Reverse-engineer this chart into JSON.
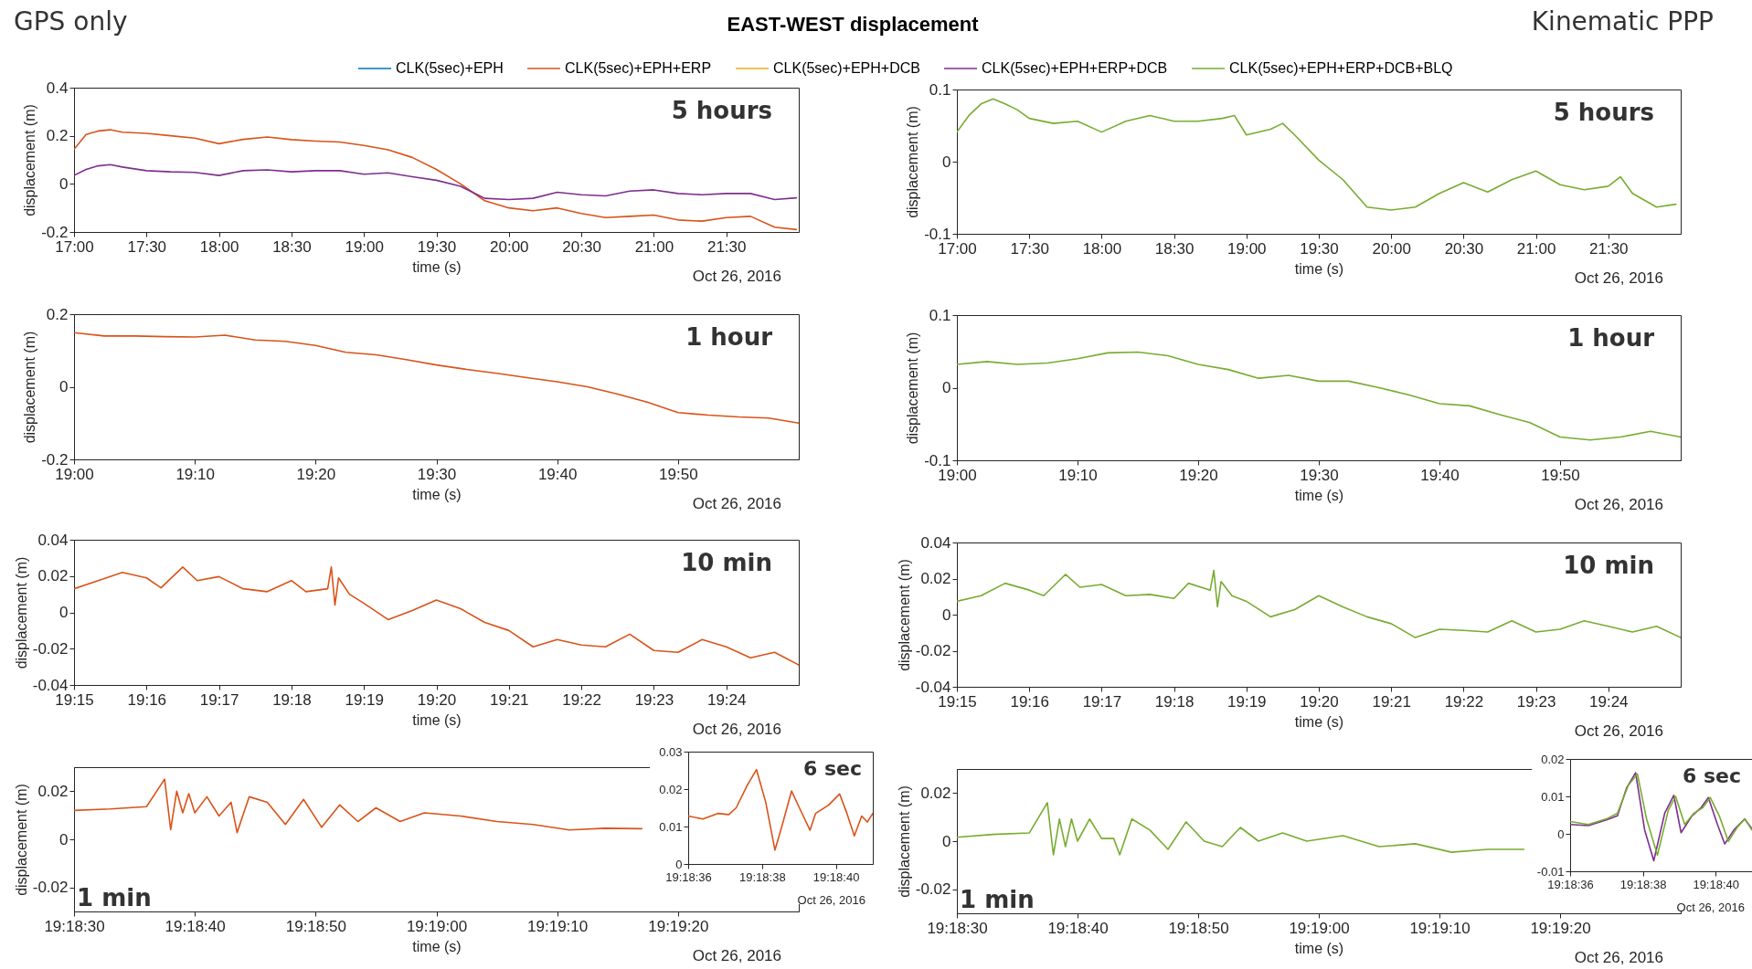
{
  "chart_data": [
    {
      "type": "line",
      "title": "EAST-WEST displacement",
      "subtitle": "GPS only",
      "xlabel": "time (s)",
      "ylabel": "displacement (m)",
      "annotations": [
        "5 hours",
        "Oct 26, 2016"
      ],
      "legend": "top",
      "xlim": [
        "2016-10-26T17:00",
        "2016-10-26T22:00"
      ],
      "ylim": [
        -0.2,
        0.4
      ],
      "yticks": [
        -0.2,
        0,
        0.2,
        0.4
      ],
      "xticks": [
        {
          "value": "2016-10-26T17:00",
          "label": "17:00"
        },
        {
          "value": "2016-10-26T17:30",
          "label": "17:30"
        },
        {
          "value": "2016-10-26T18:00",
          "label": "18:00"
        },
        {
          "value": "2016-10-26T18:30",
          "label": "18:30"
        },
        {
          "value": "2016-10-26T19:00",
          "label": "19:00"
        },
        {
          "value": "2016-10-26T19:30",
          "label": "19:30"
        },
        {
          "value": "2016-10-26T20:00",
          "label": "20:00"
        },
        {
          "value": "2016-10-26T20:30",
          "label": "20:30"
        },
        {
          "value": "2016-10-26T21:00",
          "label": "21:00"
        },
        {
          "value": "2016-10-26T21:30",
          "label": "21:30"
        }
      ],
      "x": [
        "2016-10-26T17:00",
        "2016-10-26T17:05",
        "2016-10-26T17:10",
        "2016-10-26T17:15",
        "2016-10-26T17:20",
        "2016-10-26T17:30",
        "2016-10-26T17:40",
        "2016-10-26T17:50",
        "2016-10-26T18:00",
        "2016-10-26T18:10",
        "2016-10-26T18:20",
        "2016-10-26T18:30",
        "2016-10-26T18:40",
        "2016-10-26T18:50",
        "2016-10-26T19:00",
        "2016-10-26T19:10",
        "2016-10-26T19:20",
        "2016-10-26T19:30",
        "2016-10-26T19:40",
        "2016-10-26T19:50",
        "2016-10-26T20:00",
        "2016-10-26T20:10",
        "2016-10-26T20:20",
        "2016-10-26T20:30",
        "2016-10-26T20:40",
        "2016-10-26T20:50",
        "2016-10-26T21:00",
        "2016-10-26T21:10",
        "2016-10-26T21:20",
        "2016-10-26T21:30",
        "2016-10-26T21:40",
        "2016-10-26T21:50",
        "2016-10-26T21:59"
      ],
      "series": [
        {
          "name": "CLK(5sec)+EPH",
          "color": "#0072bd",
          "values": [
            null,
            null,
            null,
            null,
            null,
            null,
            null,
            null,
            null,
            null,
            null,
            null,
            null,
            null,
            null,
            null,
            null,
            null,
            null,
            null,
            null,
            null,
            null,
            null,
            null,
            null,
            null,
            null,
            null,
            null,
            null,
            null,
            null
          ]
        },
        {
          "name": "CLK(5sec)+EPH+ERP",
          "color": "#d95319",
          "values": [
            0.144,
            0.205,
            0.22,
            0.225,
            0.215,
            0.21,
            0.2,
            0.19,
            0.167,
            0.185,
            0.195,
            0.184,
            0.178,
            0.174,
            0.16,
            0.142,
            0.11,
            0.06,
            0.0,
            -0.07,
            -0.1,
            -0.112,
            -0.1,
            -0.123,
            -0.14,
            -0.135,
            -0.13,
            -0.15,
            -0.155,
            -0.14,
            -0.135,
            -0.18,
            -0.19
          ]
        },
        {
          "name": "CLK(5sec)+EPH+DCB",
          "color": "#edb120",
          "values": [
            null,
            null,
            null,
            null,
            null,
            null,
            null,
            null,
            null,
            null,
            null,
            null,
            null,
            null,
            null,
            null,
            null,
            null,
            null,
            null,
            null,
            null,
            null,
            null,
            null,
            null,
            null,
            null,
            null,
            null,
            null,
            null,
            null
          ]
        },
        {
          "name": "CLK(5sec)+EPH+ERP+DCB",
          "color": "#7e2f8e",
          "values": [
            0.035,
            0.06,
            0.075,
            0.08,
            0.07,
            0.055,
            0.05,
            0.048,
            0.035,
            0.055,
            0.058,
            0.05,
            0.055,
            0.055,
            0.04,
            0.046,
            0.03,
            0.015,
            -0.01,
            -0.06,
            -0.065,
            -0.06,
            -0.035,
            -0.045,
            -0.05,
            -0.03,
            -0.025,
            -0.04,
            -0.045,
            -0.04,
            -0.04,
            -0.065,
            -0.058
          ]
        },
        {
          "name": "CLK(5sec)+EPH+ERP+DCB+BLQ",
          "color": "#77ac30",
          "values": [
            null,
            null,
            null,
            null,
            null,
            null,
            null,
            null,
            null,
            null,
            null,
            null,
            null,
            null,
            null,
            null,
            null,
            null,
            null,
            null,
            null,
            null,
            null,
            null,
            null,
            null,
            null,
            null,
            null,
            null,
            null,
            null,
            null
          ]
        }
      ]
    },
    {
      "type": "line",
      "xlabel": "time (s)",
      "ylabel": "displacement (m)",
      "annotations": [
        "1 hour",
        "Oct 26, 2016"
      ],
      "xlim": [
        "2016-10-26T19:00",
        "2016-10-26T20:00"
      ],
      "ylim": [
        -0.2,
        0.2
      ],
      "yticks": [
        -0.2,
        0,
        0.2
      ],
      "xticks": [
        {
          "value": "2016-10-26T19:00",
          "label": "19:00"
        },
        {
          "value": "2016-10-26T19:10",
          "label": "19:10"
        },
        {
          "value": "2016-10-26T19:20",
          "label": "19:20"
        },
        {
          "value": "2016-10-26T19:30",
          "label": "19:30"
        },
        {
          "value": "2016-10-26T19:40",
          "label": "19:40"
        },
        {
          "value": "2016-10-26T19:50",
          "label": "19:50"
        }
      ],
      "x": [
        "2016-10-26T19:00:00",
        "2016-10-26T19:02:30",
        "2016-10-26T19:05:00",
        "2016-10-26T19:07:30",
        "2016-10-26T19:10:00",
        "2016-10-26T19:12:30",
        "2016-10-26T19:15:00",
        "2016-10-26T19:17:30",
        "2016-10-26T19:20:00",
        "2016-10-26T19:22:30",
        "2016-10-26T19:25:00",
        "2016-10-26T19:27:30",
        "2016-10-26T19:30:00",
        "2016-10-26T19:32:30",
        "2016-10-26T19:35:00",
        "2016-10-26T19:37:30",
        "2016-10-26T19:40:00",
        "2016-10-26T19:42:30",
        "2016-10-26T19:45:00",
        "2016-10-26T19:47:30",
        "2016-10-26T19:50:00",
        "2016-10-26T19:52:30",
        "2016-10-26T19:55:00",
        "2016-10-26T19:57:30",
        "2016-10-26T20:00:00"
      ],
      "series": [
        {
          "color": "#d95319",
          "values": [
            0.149,
            0.14,
            0.14,
            0.138,
            0.137,
            0.142,
            0.129,
            0.125,
            0.114,
            0.095,
            0.088,
            0.075,
            0.06,
            0.048,
            0.037,
            0.025,
            0.014,
            0.0,
            -0.02,
            -0.043,
            -0.071,
            -0.078,
            -0.083,
            -0.086,
            -0.1
          ]
        }
      ]
    },
    {
      "type": "line",
      "xlabel": "time (s)",
      "ylabel": "displacement (m)",
      "annotations": [
        "10 min",
        "Oct 26, 2016"
      ],
      "xlim": [
        "2016-10-26T19:15",
        "2016-10-26T19:25"
      ],
      "ylim": [
        -0.04,
        0.04
      ],
      "yticks": [
        -0.04,
        -0.02,
        0,
        0.02,
        0.04
      ],
      "xticks": [
        {
          "value": "2016-10-26T19:15",
          "label": "19:15"
        },
        {
          "value": "2016-10-26T19:16",
          "label": "19:16"
        },
        {
          "value": "2016-10-26T19:17",
          "label": "19:17"
        },
        {
          "value": "2016-10-26T19:18",
          "label": "19:18"
        },
        {
          "value": "2016-10-26T19:19",
          "label": "19:19"
        },
        {
          "value": "2016-10-26T19:20",
          "label": "19:20"
        },
        {
          "value": "2016-10-26T19:21",
          "label": "19:21"
        },
        {
          "value": "2016-10-26T19:22",
          "label": "19:22"
        },
        {
          "value": "2016-10-26T19:23",
          "label": "19:23"
        },
        {
          "value": "2016-10-26T19:24",
          "label": "19:24"
        }
      ],
      "x": [
        "2016-10-26T19:15:00",
        "2016-10-26T19:15:20",
        "2016-10-26T19:15:40",
        "2016-10-26T19:16:00",
        "2016-10-26T19:16:12",
        "2016-10-26T19:16:30",
        "2016-10-26T19:16:42",
        "2016-10-26T19:17:00",
        "2016-10-26T19:17:20",
        "2016-10-26T19:17:40",
        "2016-10-26T19:18:00",
        "2016-10-26T19:18:12",
        "2016-10-26T19:18:30",
        "2016-10-26T19:18:33",
        "2016-10-26T19:18:36",
        "2016-10-26T19:18:39",
        "2016-10-26T19:18:48",
        "2016-10-26T19:19:00",
        "2016-10-26T19:19:20",
        "2016-10-26T19:19:40",
        "2016-10-26T19:20:00",
        "2016-10-26T19:20:20",
        "2016-10-26T19:20:40",
        "2016-10-26T19:21:00",
        "2016-10-26T19:21:20",
        "2016-10-26T19:21:40",
        "2016-10-26T19:22:00",
        "2016-10-26T19:22:20",
        "2016-10-26T19:22:40",
        "2016-10-26T19:23:00",
        "2016-10-26T19:23:20",
        "2016-10-26T19:23:40",
        "2016-10-26T19:24:00",
        "2016-10-26T19:24:20",
        "2016-10-26T19:24:40",
        "2016-10-26T19:25:00"
      ],
      "series": [
        {
          "color": "#d95319",
          "values": [
            0.013,
            0.0175,
            0.022,
            0.019,
            0.0135,
            0.025,
            0.0175,
            0.0197,
            0.013,
            0.0114,
            0.0175,
            0.0114,
            0.013,
            0.025,
            0.004,
            0.019,
            0.01,
            0.005,
            -0.004,
            0.001,
            0.0068,
            0.002,
            -0.0055,
            -0.01,
            -0.019,
            -0.015,
            -0.018,
            -0.019,
            -0.012,
            -0.021,
            -0.022,
            -0.015,
            -0.019,
            -0.025,
            -0.022,
            -0.029
          ]
        }
      ]
    },
    {
      "type": "line",
      "xlabel": "time (s)",
      "ylabel": "displacement (m)",
      "annotations": [
        "1 min",
        "Oct 26, 2016"
      ],
      "xlim": [
        "2016-10-26T19:18:30",
        "2016-10-26T19:19:30"
      ],
      "ylim": [
        -0.03,
        0.03
      ],
      "yticks": [
        -0.02,
        0,
        0.02
      ],
      "xticks": [
        {
          "value": "2016-10-26T19:18:30",
          "label": "19:18:30"
        },
        {
          "value": "2016-10-26T19:18:40",
          "label": "19:18:40"
        },
        {
          "value": "2016-10-26T19:18:50",
          "label": "19:18:50"
        },
        {
          "value": "2016-10-26T19:19:00",
          "label": "19:19:00"
        },
        {
          "value": "2016-10-26T19:19:10",
          "label": "19:19:10"
        },
        {
          "value": "2016-10-26T19:19:20",
          "label": "19:19:20"
        }
      ],
      "x": [
        "2016-10-26T19:18:30",
        "2016-10-26T19:18:33",
        "2016-10-26T19:18:36",
        "2016-10-26T19:18:37.500",
        "2016-10-26T19:18:38",
        "2016-10-26T19:18:38.500",
        "2016-10-26T19:18:39",
        "2016-10-26T19:18:39.500",
        "2016-10-26T19:18:40",
        "2016-10-26T19:18:41",
        "2016-10-26T19:18:42",
        "2016-10-26T19:18:43",
        "2016-10-26T19:18:43.500",
        "2016-10-26T19:18:44.500",
        "2016-10-26T19:18:46",
        "2016-10-26T19:18:47.500",
        "2016-10-26T19:18:49",
        "2016-10-26T19:18:50.500",
        "2016-10-26T19:18:52",
        "2016-10-26T19:18:53.500",
        "2016-10-26T19:18:55",
        "2016-10-26T19:18:57",
        "2016-10-26T19:18:59",
        "2016-10-26T19:19:02",
        "2016-10-26T19:19:05",
        "2016-10-26T19:19:08",
        "2016-10-26T19:19:11",
        "2016-10-26T19:19:14",
        "2016-10-26T19:19:17"
      ],
      "series": [
        {
          "color": "#d95319",
          "values": [
            0.012,
            0.0126,
            0.0136,
            0.025,
            0.004,
            0.02,
            0.011,
            0.019,
            0.011,
            0.0177,
            0.0097,
            0.0154,
            0.0028,
            0.0177,
            0.0154,
            0.0062,
            0.0166,
            0.005,
            0.0143,
            0.0074,
            0.0131,
            0.0074,
            0.011,
            0.0097,
            0.0074,
            0.0062,
            0.0039,
            0.0046,
            0.0044
          ]
        }
      ]
    },
    {
      "type": "line",
      "annotations": [
        "6 sec",
        "Oct 26, 2016"
      ],
      "xlim": [
        "2016-10-26T19:18:36",
        "2016-10-26T19:18:41"
      ],
      "ylim": [
        0,
        0.03
      ],
      "yticks": [
        0,
        0.01,
        0.02,
        0.03
      ],
      "xticks": [
        {
          "value": "2016-10-26T19:18:36",
          "label": "19:18:36"
        },
        {
          "value": "2016-10-26T19:18:38",
          "label": "19:18:38"
        },
        {
          "value": "2016-10-26T19:18:40",
          "label": "19:18:40"
        }
      ],
      "x": [
        "2016-10-26T19:18:36.000",
        "2016-10-26T19:18:36.400",
        "2016-10-26T19:18:36.800",
        "2016-10-26T19:18:37.100",
        "2016-10-26T19:18:37.300",
        "2016-10-26T19:18:37.600",
        "2016-10-26T19:18:37.850",
        "2016-10-26T19:18:38.100",
        "2016-10-26T19:18:38.350",
        "2016-10-26T19:18:38.550",
        "2016-10-26T19:18:38.800",
        "2016-10-26T19:18:39.050",
        "2016-10-26T19:18:39.300",
        "2016-10-26T19:18:39.450",
        "2016-10-26T19:18:39.800",
        "2016-10-26T19:18:40.100",
        "2016-10-26T19:18:40.300",
        "2016-10-26T19:18:40.500",
        "2016-10-26T19:18:40.700",
        "2016-10-26T19:18:40.850",
        "2016-10-26T19:18:41.000"
      ],
      "series": [
        {
          "color": "#d95319",
          "values": [
            0.0128,
            0.012,
            0.0135,
            0.0132,
            0.015,
            0.021,
            0.0252,
            0.0165,
            0.0037,
            0.0105,
            0.0195,
            0.0142,
            0.009,
            0.0135,
            0.0157,
            0.0187,
            0.0135,
            0.0075,
            0.0128,
            0.0112,
            0.0135
          ]
        }
      ]
    },
    {
      "type": "line",
      "subtitle": "Kinematic PPP",
      "xlabel": "time (s)",
      "ylabel": "displacement (m)",
      "annotations": [
        "5 hours",
        "Oct 26, 2016"
      ],
      "xlim": [
        "2016-10-26T17:00",
        "2016-10-26T22:00"
      ],
      "ylim": [
        -0.1,
        0.1
      ],
      "yticks": [
        -0.1,
        0,
        0.1
      ],
      "xticks": [
        {
          "value": "2016-10-26T17:00",
          "label": "17:00"
        },
        {
          "value": "2016-10-26T17:30",
          "label": "17:30"
        },
        {
          "value": "2016-10-26T18:00",
          "label": "18:00"
        },
        {
          "value": "2016-10-26T18:30",
          "label": "18:30"
        },
        {
          "value": "2016-10-26T19:00",
          "label": "19:00"
        },
        {
          "value": "2016-10-26T19:30",
          "label": "19:30"
        },
        {
          "value": "2016-10-26T20:00",
          "label": "20:00"
        },
        {
          "value": "2016-10-26T20:30",
          "label": "20:30"
        },
        {
          "value": "2016-10-26T21:00",
          "label": "21:00"
        },
        {
          "value": "2016-10-26T21:30",
          "label": "21:30"
        }
      ],
      "x": [
        "2016-10-26T17:00",
        "2016-10-26T17:05",
        "2016-10-26T17:10",
        "2016-10-26T17:15",
        "2016-10-26T17:20",
        "2016-10-26T17:25",
        "2016-10-26T17:30",
        "2016-10-26T17:40",
        "2016-10-26T17:50",
        "2016-10-26T18:00",
        "2016-10-26T18:10",
        "2016-10-26T18:20",
        "2016-10-26T18:30",
        "2016-10-26T18:40",
        "2016-10-26T18:50",
        "2016-10-26T18:55",
        "2016-10-26T19:00",
        "2016-10-26T19:10",
        "2016-10-26T19:15",
        "2016-10-26T19:20",
        "2016-10-26T19:30",
        "2016-10-26T19:40",
        "2016-10-26T19:50",
        "2016-10-26T20:00",
        "2016-10-26T20:10",
        "2016-10-26T20:20",
        "2016-10-26T20:30",
        "2016-10-26T20:40",
        "2016-10-26T20:50",
        "2016-10-26T21:00",
        "2016-10-26T21:10",
        "2016-10-26T21:20",
        "2016-10-26T21:30",
        "2016-10-26T21:35",
        "2016-10-26T21:40",
        "2016-10-26T21:50",
        "2016-10-26T21:58"
      ],
      "series": [
        {
          "color": "#77ac30",
          "values": [
            0.041,
            0.064,
            0.08,
            0.087,
            0.08,
            0.072,
            0.06,
            0.053,
            0.056,
            0.041,
            0.056,
            0.064,
            0.056,
            0.056,
            0.06,
            0.064,
            0.037,
            0.045,
            0.053,
            0.037,
            0.002,
            -0.025,
            -0.063,
            -0.067,
            -0.063,
            -0.044,
            -0.029,
            -0.042,
            -0.025,
            -0.013,
            -0.032,
            -0.039,
            -0.034,
            -0.021,
            -0.044,
            -0.063,
            -0.059
          ]
        }
      ]
    },
    {
      "type": "line",
      "xlabel": "time (s)",
      "ylabel": "displacement (m)",
      "annotations": [
        "1 hour",
        "Oct 26, 2016"
      ],
      "xlim": [
        "2016-10-26T19:00",
        "2016-10-26T20:00"
      ],
      "ylim": [
        -0.1,
        0.1
      ],
      "yticks": [
        -0.1,
        0,
        0.1
      ],
      "xticks": [
        {
          "value": "2016-10-26T19:00",
          "label": "19:00"
        },
        {
          "value": "2016-10-26T19:10",
          "label": "19:10"
        },
        {
          "value": "2016-10-26T19:20",
          "label": "19:20"
        },
        {
          "value": "2016-10-26T19:30",
          "label": "19:30"
        },
        {
          "value": "2016-10-26T19:40",
          "label": "19:40"
        },
        {
          "value": "2016-10-26T19:50",
          "label": "19:50"
        }
      ],
      "x": [
        "2016-10-26T19:00:00",
        "2016-10-26T19:02:30",
        "2016-10-26T19:05:00",
        "2016-10-26T19:07:30",
        "2016-10-26T19:10:00",
        "2016-10-26T19:12:30",
        "2016-10-26T19:15:00",
        "2016-10-26T19:17:30",
        "2016-10-26T19:20:00",
        "2016-10-26T19:22:30",
        "2016-10-26T19:25:00",
        "2016-10-26T19:27:30",
        "2016-10-26T19:30:00",
        "2016-10-26T19:32:30",
        "2016-10-26T19:35:00",
        "2016-10-26T19:37:30",
        "2016-10-26T19:40:00",
        "2016-10-26T19:42:30",
        "2016-10-26T19:45:00",
        "2016-10-26T19:47:30",
        "2016-10-26T19:50:00",
        "2016-10-26T19:52:30",
        "2016-10-26T19:55:00",
        "2016-10-26T19:57:30",
        "2016-10-26T20:00:00"
      ],
      "series": [
        {
          "color": "#77ac30",
          "values": [
            0.032,
            0.036,
            0.032,
            0.034,
            0.04,
            0.048,
            0.049,
            0.044,
            0.032,
            0.025,
            0.013,
            0.017,
            0.009,
            0.009,
            0.0,
            -0.01,
            -0.022,
            -0.025,
            -0.037,
            -0.048,
            -0.068,
            -0.072,
            -0.068,
            -0.06,
            -0.068
          ]
        }
      ]
    },
    {
      "type": "line",
      "xlabel": "time (s)",
      "ylabel": "displacement (m)",
      "annotations": [
        "10 min",
        "Oct 26, 2016"
      ],
      "xlim": [
        "2016-10-26T19:15",
        "2016-10-26T19:25"
      ],
      "ylim": [
        -0.04,
        0.04
      ],
      "yticks": [
        -0.04,
        -0.02,
        0,
        0.02,
        0.04
      ],
      "xticks": [
        {
          "value": "2016-10-26T19:15",
          "label": "19:15"
        },
        {
          "value": "2016-10-26T19:16",
          "label": "19:16"
        },
        {
          "value": "2016-10-26T19:17",
          "label": "19:17"
        },
        {
          "value": "2016-10-26T19:18",
          "label": "19:18"
        },
        {
          "value": "2016-10-26T19:19",
          "label": "19:19"
        },
        {
          "value": "2016-10-26T19:20",
          "label": "19:20"
        },
        {
          "value": "2016-10-26T19:21",
          "label": "19:21"
        },
        {
          "value": "2016-10-26T19:22",
          "label": "19:22"
        },
        {
          "value": "2016-10-26T19:23",
          "label": "19:23"
        },
        {
          "value": "2016-10-26T19:24",
          "label": "19:24"
        }
      ],
      "x": [
        "2016-10-26T19:15:00",
        "2016-10-26T19:15:20",
        "2016-10-26T19:15:40",
        "2016-10-26T19:16:00",
        "2016-10-26T19:16:12",
        "2016-10-26T19:16:30",
        "2016-10-26T19:16:42",
        "2016-10-26T19:17:00",
        "2016-10-26T19:17:20",
        "2016-10-26T19:17:40",
        "2016-10-26T19:18:00",
        "2016-10-26T19:18:12",
        "2016-10-26T19:18:30",
        "2016-10-26T19:18:33",
        "2016-10-26T19:18:36",
        "2016-10-26T19:18:39",
        "2016-10-26T19:18:48",
        "2016-10-26T19:19:00",
        "2016-10-26T19:19:20",
        "2016-10-26T19:19:40",
        "2016-10-26T19:20:00",
        "2016-10-26T19:20:20",
        "2016-10-26T19:20:40",
        "2016-10-26T19:21:00",
        "2016-10-26T19:21:20",
        "2016-10-26T19:21:40",
        "2016-10-26T19:22:00",
        "2016-10-26T19:22:20",
        "2016-10-26T19:22:40",
        "2016-10-26T19:23:00",
        "2016-10-26T19:23:20",
        "2016-10-26T19:23:40",
        "2016-10-26T19:24:00",
        "2016-10-26T19:24:20",
        "2016-10-26T19:24:40",
        "2016-10-26T19:25:00"
      ],
      "series": [
        {
          "color": "#77ac30",
          "values": [
            0.0074,
            0.0105,
            0.0174,
            0.0136,
            0.0105,
            0.0223,
            0.0152,
            0.0167,
            0.0105,
            0.0112,
            0.009,
            0.0174,
            0.0136,
            0.0245,
            0.0043,
            0.0183,
            0.0105,
            0.0074,
            -0.0012,
            0.0028,
            0.0105,
            0.0043,
            -0.0012,
            -0.005,
            -0.0127,
            -0.0081,
            -0.0087,
            -0.0096,
            -0.0034,
            -0.0096,
            -0.0081,
            -0.0034,
            -0.0065,
            -0.0096,
            -0.0065,
            -0.0127
          ]
        }
      ]
    },
    {
      "type": "line",
      "xlabel": "time (s)",
      "ylabel": "displacement (m)",
      "annotations": [
        "1 min",
        "Oct 26, 2016"
      ],
      "xlim": [
        "2016-10-26T19:18:30",
        "2016-10-26T19:19:30"
      ],
      "ylim": [
        -0.03,
        0.03
      ],
      "yticks": [
        -0.02,
        0,
        0.02
      ],
      "xticks": [
        {
          "value": "2016-10-26T19:18:30",
          "label": "19:18:30"
        },
        {
          "value": "2016-10-26T19:18:40",
          "label": "19:18:40"
        },
        {
          "value": "2016-10-26T19:18:50",
          "label": "19:18:50"
        },
        {
          "value": "2016-10-26T19:19:00",
          "label": "19:19:00"
        },
        {
          "value": "2016-10-26T19:19:10",
          "label": "19:19:10"
        },
        {
          "value": "2016-10-26T19:19:20",
          "label": "19:19:20"
        }
      ],
      "x": [
        "2016-10-26T19:18:30",
        "2016-10-26T19:18:33",
        "2016-10-26T19:18:36",
        "2016-10-26T19:18:37.500",
        "2016-10-26T19:18:38",
        "2016-10-26T19:18:38.500",
        "2016-10-26T19:18:39",
        "2016-10-26T19:18:39.500",
        "2016-10-26T19:18:40",
        "2016-10-26T19:18:41",
        "2016-10-26T19:18:42",
        "2016-10-26T19:18:43",
        "2016-10-26T19:18:43.500",
        "2016-10-26T19:18:44.500",
        "2016-10-26T19:18:46",
        "2016-10-26T19:18:47.500",
        "2016-10-26T19:18:49",
        "2016-10-26T19:18:50.500",
        "2016-10-26T19:18:52",
        "2016-10-26T19:18:53.500",
        "2016-10-26T19:18:55",
        "2016-10-26T19:18:57",
        "2016-10-26T19:18:59",
        "2016-10-26T19:19:02",
        "2016-10-26T19:19:05",
        "2016-10-26T19:19:08",
        "2016-10-26T19:19:11",
        "2016-10-26T19:19:14",
        "2016-10-26T19:19:17"
      ],
      "series": [
        {
          "color": "#77ac30",
          "values": [
            0.0016,
            0.0028,
            0.0034,
            0.016,
            -0.0057,
            0.0092,
            -0.0023,
            0.0092,
            0.0,
            0.0092,
            0.0011,
            0.0011,
            -0.0057,
            0.0092,
            0.0046,
            -0.0034,
            0.008,
            0.0,
            -0.0023,
            0.0057,
            0.0,
            0.0034,
            0.0,
            0.0023,
            -0.0023,
            -0.0011,
            -0.0046,
            -0.0034,
            -0.0034
          ]
        }
      ]
    },
    {
      "type": "line",
      "annotations": [
        "6 sec",
        "Oct 26, 2016"
      ],
      "xlim": [
        "2016-10-26T19:18:36",
        "2016-10-26T19:18:41"
      ],
      "ylim": [
        -0.01,
        0.02
      ],
      "yticks": [
        -0.01,
        0,
        0.01,
        0.02
      ],
      "xticks": [
        {
          "value": "2016-10-26T19:18:36",
          "label": "19:18:36"
        },
        {
          "value": "2016-10-26T19:18:38",
          "label": "19:18:38"
        },
        {
          "value": "2016-10-26T19:18:40",
          "label": "19:18:40"
        }
      ],
      "series": [
        {
          "color": "#7e2f8e",
          "x": [
            "2016-10-26T19:18:36.000",
            "2016-10-26T19:18:36.500",
            "2016-10-26T19:18:37.000",
            "2016-10-26T19:18:37.300",
            "2016-10-26T19:18:37.550",
            "2016-10-26T19:18:37.800",
            "2016-10-26T19:18:38.050",
            "2016-10-26T19:18:38.300",
            "2016-10-26T19:18:38.600",
            "2016-10-26T19:18:38.850",
            "2016-10-26T19:18:39.050",
            "2016-10-26T19:18:39.350",
            "2016-10-26T19:18:39.600",
            "2016-10-26T19:18:39.800",
            "2016-10-26T19:18:40.050",
            "2016-10-26T19:18:40.250",
            "2016-10-26T19:18:40.500",
            "2016-10-26T19:18:40.800",
            "2016-10-26T19:18:41.000"
          ],
          "values": [
            0.0025,
            0.0022,
            0.0037,
            0.0048,
            0.0122,
            0.0163,
            0.001,
            -0.0072,
            0.0055,
            0.0103,
            0.0003,
            0.0048,
            0.007,
            0.0097,
            0.0025,
            -0.0027,
            0.001,
            0.004,
            0.0013
          ]
        },
        {
          "color": "#77ac30",
          "x": [
            "2016-10-26T19:18:36.000",
            "2016-10-26T19:18:36.500",
            "2016-10-26T19:18:37.000",
            "2016-10-26T19:18:37.300",
            "2016-10-26T19:18:37.600",
            "2016-10-26T19:18:37.850",
            "2016-10-26T19:18:38.100",
            "2016-10-26T19:18:38.400",
            "2016-10-26T19:18:38.700",
            "2016-10-26T19:18:38.900",
            "2016-10-26T19:18:39.150",
            "2016-10-26T19:18:39.400",
            "2016-10-26T19:18:39.650",
            "2016-10-26T19:18:39.850",
            "2016-10-26T19:18:40.100",
            "2016-10-26T19:18:40.350",
            "2016-10-26T19:18:40.600",
            "2016-10-26T19:18:40.800",
            "2016-10-26T19:18:41.000"
          ],
          "values": [
            0.0033,
            0.0025,
            0.004,
            0.0055,
            0.013,
            0.016,
            0.004,
            -0.0057,
            0.0063,
            0.01,
            0.0025,
            0.0055,
            0.007,
            0.0097,
            0.0048,
            -0.002,
            0.0018,
            0.004,
            0.001
          ]
        }
      ]
    }
  ]
}
